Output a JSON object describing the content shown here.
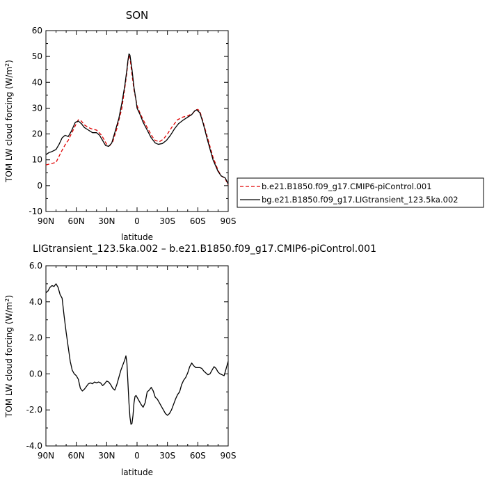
{
  "chart_data": [
    {
      "type": "line",
      "title": "SON",
      "xlabel": "latitude",
      "ylabel": "TOM LW cloud forcing (W/m²)",
      "x_ticks": [
        90,
        60,
        30,
        0,
        -30,
        -60,
        -90
      ],
      "x_tick_labels": [
        "90N",
        "60N",
        "30N",
        "0",
        "30S",
        "60S",
        "90S"
      ],
      "xlim": [
        90,
        -90
      ],
      "ylim": [
        -10,
        60
      ],
      "y_ticks": [
        -10,
        0,
        10,
        20,
        30,
        40,
        50,
        60
      ],
      "y_tick_labels": [
        "-10",
        "0",
        "10",
        "20",
        "30",
        "40",
        "50",
        "60"
      ],
      "legend_placement": "right",
      "series": [
        {
          "name": "b.e21.B1850.f09_g17.CMIP6-piControl.001",
          "color": "#e00000",
          "dash": "dashed",
          "points": [
            [
              90,
              8
            ],
            [
              85,
              8.5
            ],
            [
              80,
              9
            ],
            [
              75,
              13
            ],
            [
              70,
              16.5
            ],
            [
              68,
              17.5
            ],
            [
              65,
              20
            ],
            [
              60,
              24
            ],
            [
              58,
              25.5
            ],
            [
              55,
              25
            ],
            [
              52,
              23.5
            ],
            [
              48,
              22.5
            ],
            [
              45,
              22
            ],
            [
              40,
              21.5
            ],
            [
              35,
              19.5
            ],
            [
              30,
              16
            ],
            [
              27,
              15.5
            ],
            [
              24,
              17
            ],
            [
              20,
              22
            ],
            [
              15,
              30
            ],
            [
              12,
              38
            ],
            [
              10,
              44
            ],
            [
              9,
              48
            ],
            [
              8,
              50.5
            ],
            [
              7,
              49.5
            ],
            [
              5,
              43
            ],
            [
              3,
              37
            ],
            [
              0,
              31
            ],
            [
              -3,
              28
            ],
            [
              -6,
              25.5
            ],
            [
              -10,
              22.5
            ],
            [
              -15,
              19
            ],
            [
              -18,
              17.5
            ],
            [
              -22,
              17
            ],
            [
              -26,
              18
            ],
            [
              -30,
              20
            ],
            [
              -35,
              23
            ],
            [
              -40,
              25.5
            ],
            [
              -45,
              26.5
            ],
            [
              -50,
              27
            ],
            [
              -55,
              28
            ],
            [
              -58,
              29.3
            ],
            [
              -60,
              29.5
            ],
            [
              -62,
              28.8
            ],
            [
              -65,
              25
            ],
            [
              -70,
              18
            ],
            [
              -75,
              11
            ],
            [
              -80,
              6
            ],
            [
              -83,
              3.8
            ],
            [
              -87,
              2.8
            ],
            [
              -89,
              1
            ],
            [
              -90,
              0.3
            ]
          ]
        },
        {
          "name": "bg.e21.B1850.f09_g17.LIGtransient_123.5ka.002",
          "color": "#000000",
          "dash": "solid",
          "points": [
            [
              90,
              12
            ],
            [
              87,
              12.8
            ],
            [
              84,
              13.2
            ],
            [
              80,
              14
            ],
            [
              77,
              16
            ],
            [
              74,
              18.5
            ],
            [
              71,
              19.5
            ],
            [
              68,
              19
            ],
            [
              65,
              21
            ],
            [
              61,
              24.5
            ],
            [
              58,
              25
            ],
            [
              55,
              24
            ],
            [
              52,
              22.5
            ],
            [
              48,
              21.5
            ],
            [
              44,
              20.5
            ],
            [
              40,
              20.5
            ],
            [
              37,
              19.5
            ],
            [
              34,
              17.5
            ],
            [
              31,
              15.5
            ],
            [
              28,
              15.2
            ],
            [
              25,
              16.5
            ],
            [
              22,
              20.5
            ],
            [
              18,
              26
            ],
            [
              15,
              32
            ],
            [
              12,
              39
            ],
            [
              10,
              45
            ],
            [
              9,
              48.5
            ],
            [
              8,
              51
            ],
            [
              7,
              50.5
            ],
            [
              5,
              45
            ],
            [
              3,
              38
            ],
            [
              1,
              33
            ],
            [
              0,
              30
            ],
            [
              -3,
              27.5
            ],
            [
              -6,
              24.5
            ],
            [
              -10,
              21.5
            ],
            [
              -14,
              18.5
            ],
            [
              -18,
              16.5
            ],
            [
              -21,
              16
            ],
            [
              -25,
              16.3
            ],
            [
              -29,
              17.5
            ],
            [
              -33,
              19.5
            ],
            [
              -37,
              22
            ],
            [
              -41,
              24
            ],
            [
              -46,
              25.5
            ],
            [
              -50,
              26.5
            ],
            [
              -54,
              27.5
            ],
            [
              -57,
              29
            ],
            [
              -59,
              29.3
            ],
            [
              -62,
              28.2
            ],
            [
              -65,
              24.5
            ],
            [
              -70,
              17
            ],
            [
              -75,
              10
            ],
            [
              -80,
              5.5
            ],
            [
              -83,
              3.8
            ],
            [
              -87,
              3
            ],
            [
              -89,
              1.5
            ],
            [
              -90,
              0.5
            ]
          ]
        }
      ]
    },
    {
      "type": "line",
      "title": "LIGtransient_123.5ka.002 – b.e21.B1850.f09_g17.CMIP6-piControl.001",
      "xlabel": "latitude",
      "ylabel": "TOM LW cloud forcing (W/m²)",
      "x_ticks": [
        90,
        60,
        30,
        0,
        -30,
        -60,
        -90
      ],
      "x_tick_labels": [
        "90N",
        "60N",
        "30N",
        "0",
        "30S",
        "60S",
        "90S"
      ],
      "xlim": [
        90,
        -90
      ],
      "ylim": [
        -4,
        6
      ],
      "y_ticks": [
        -4,
        -2,
        0,
        2,
        4,
        6
      ],
      "y_tick_labels": [
        "-4.0",
        "-2.0",
        "0.0",
        "2.0",
        "4.0",
        "6.0"
      ],
      "series": [
        {
          "color": "#000000",
          "dash": "solid",
          "points": [
            [
              90,
              4.5
            ],
            [
              88,
              4.6
            ],
            [
              86,
              4.8
            ],
            [
              84,
              4.9
            ],
            [
              82,
              4.85
            ],
            [
              80,
              5.0
            ],
            [
              78,
              4.8
            ],
            [
              76,
              4.4
            ],
            [
              74,
              4.2
            ],
            [
              72,
              3.2
            ],
            [
              70,
              2.3
            ],
            [
              68,
              1.5
            ],
            [
              66,
              0.7
            ],
            [
              64,
              0.2
            ],
            [
              62,
              0.0
            ],
            [
              60,
              -0.1
            ],
            [
              58,
              -0.3
            ],
            [
              56,
              -0.8
            ],
            [
              54,
              -0.95
            ],
            [
              52,
              -0.85
            ],
            [
              50,
              -0.7
            ],
            [
              48,
              -0.55
            ],
            [
              46,
              -0.5
            ],
            [
              44,
              -0.55
            ],
            [
              42,
              -0.45
            ],
            [
              40,
              -0.5
            ],
            [
              38,
              -0.45
            ],
            [
              36,
              -0.5
            ],
            [
              34,
              -0.65
            ],
            [
              32,
              -0.55
            ],
            [
              30,
              -0.4
            ],
            [
              28,
              -0.45
            ],
            [
              26,
              -0.6
            ],
            [
              24,
              -0.8
            ],
            [
              22,
              -0.9
            ],
            [
              20,
              -0.6
            ],
            [
              18,
              -0.2
            ],
            [
              16,
              0.2
            ],
            [
              14,
              0.5
            ],
            [
              12,
              0.8
            ],
            [
              11,
              1.0
            ],
            [
              10,
              0.6
            ],
            [
              9,
              -0.5
            ],
            [
              8,
              -1.6
            ],
            [
              7,
              -2.4
            ],
            [
              6,
              -2.8
            ],
            [
              5,
              -2.75
            ],
            [
              4,
              -2.3
            ],
            [
              3,
              -1.6
            ],
            [
              2,
              -1.25
            ],
            [
              1,
              -1.2
            ],
            [
              0,
              -1.3
            ],
            [
              -2,
              -1.5
            ],
            [
              -4,
              -1.7
            ],
            [
              -6,
              -1.85
            ],
            [
              -8,
              -1.6
            ],
            [
              -10,
              -1.0
            ],
            [
              -12,
              -0.9
            ],
            [
              -14,
              -0.75
            ],
            [
              -16,
              -0.95
            ],
            [
              -18,
              -1.3
            ],
            [
              -20,
              -1.4
            ],
            [
              -22,
              -1.6
            ],
            [
              -24,
              -1.8
            ],
            [
              -26,
              -2.0
            ],
            [
              -28,
              -2.2
            ],
            [
              -30,
              -2.3
            ],
            [
              -32,
              -2.2
            ],
            [
              -34,
              -2.0
            ],
            [
              -36,
              -1.7
            ],
            [
              -38,
              -1.4
            ],
            [
              -40,
              -1.15
            ],
            [
              -42,
              -1.0
            ],
            [
              -44,
              -0.6
            ],
            [
              -46,
              -0.35
            ],
            [
              -48,
              -0.2
            ],
            [
              -50,
              0.05
            ],
            [
              -52,
              0.4
            ],
            [
              -54,
              0.6
            ],
            [
              -56,
              0.45
            ],
            [
              -58,
              0.35
            ],
            [
              -60,
              0.35
            ],
            [
              -62,
              0.35
            ],
            [
              -64,
              0.3
            ],
            [
              -66,
              0.15
            ],
            [
              -68,
              0.05
            ],
            [
              -70,
              -0.05
            ],
            [
              -72,
              0.0
            ],
            [
              -74,
              0.2
            ],
            [
              -76,
              0.4
            ],
            [
              -78,
              0.3
            ],
            [
              -80,
              0.1
            ],
            [
              -82,
              0.0
            ],
            [
              -84,
              -0.05
            ],
            [
              -86,
              -0.1
            ],
            [
              -88,
              0.3
            ],
            [
              -90,
              0.7
            ]
          ]
        }
      ]
    }
  ]
}
